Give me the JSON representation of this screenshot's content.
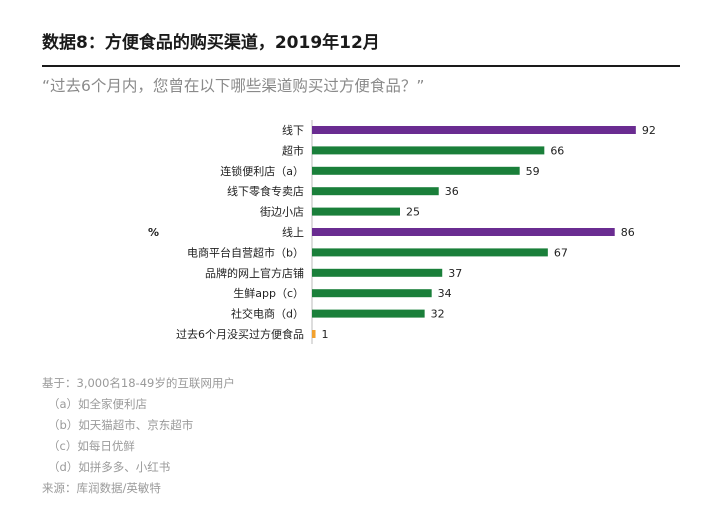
{
  "title": "数据8：方便食品的购买渠道，2019年12月",
  "subtitle": "“过去6个月内，您曾在以下哪些渠道购买过方便食品？”",
  "unit_label": "%",
  "colors": {
    "purple": "#6a2c91",
    "green": "#1a7f3a",
    "orange": "#f2a12e"
  },
  "chart_data": {
    "type": "bar",
    "orientation": "horizontal",
    "categories": [
      "线下",
      "超市",
      "连锁便利店（a）",
      "线下零食专卖店",
      "街边小店",
      "线上",
      "电商平台自营超市（b）",
      "品牌的网上官方店铺",
      "生鲜app（c）",
      "社交电商（d）",
      "过去6个月没买过方便食品"
    ],
    "values": [
      92,
      66,
      59,
      36,
      25,
      86,
      67,
      37,
      34,
      32,
      1
    ],
    "bar_colors": [
      "purple",
      "green",
      "green",
      "green",
      "green",
      "purple",
      "green",
      "green",
      "green",
      "green",
      "orange"
    ],
    "xlim": [
      0,
      100
    ],
    "title": "",
    "xlabel": "",
    "ylabel": "%"
  },
  "notes": [
    "基于：3,000名18-49岁的互联网用户",
    "（a）如全家便利店",
    "（b）如天猫超市、京东超市",
    "（c）如每日优鲜",
    "（d）如拼多多、小红书",
    "来源：库润数据/英敏特"
  ]
}
